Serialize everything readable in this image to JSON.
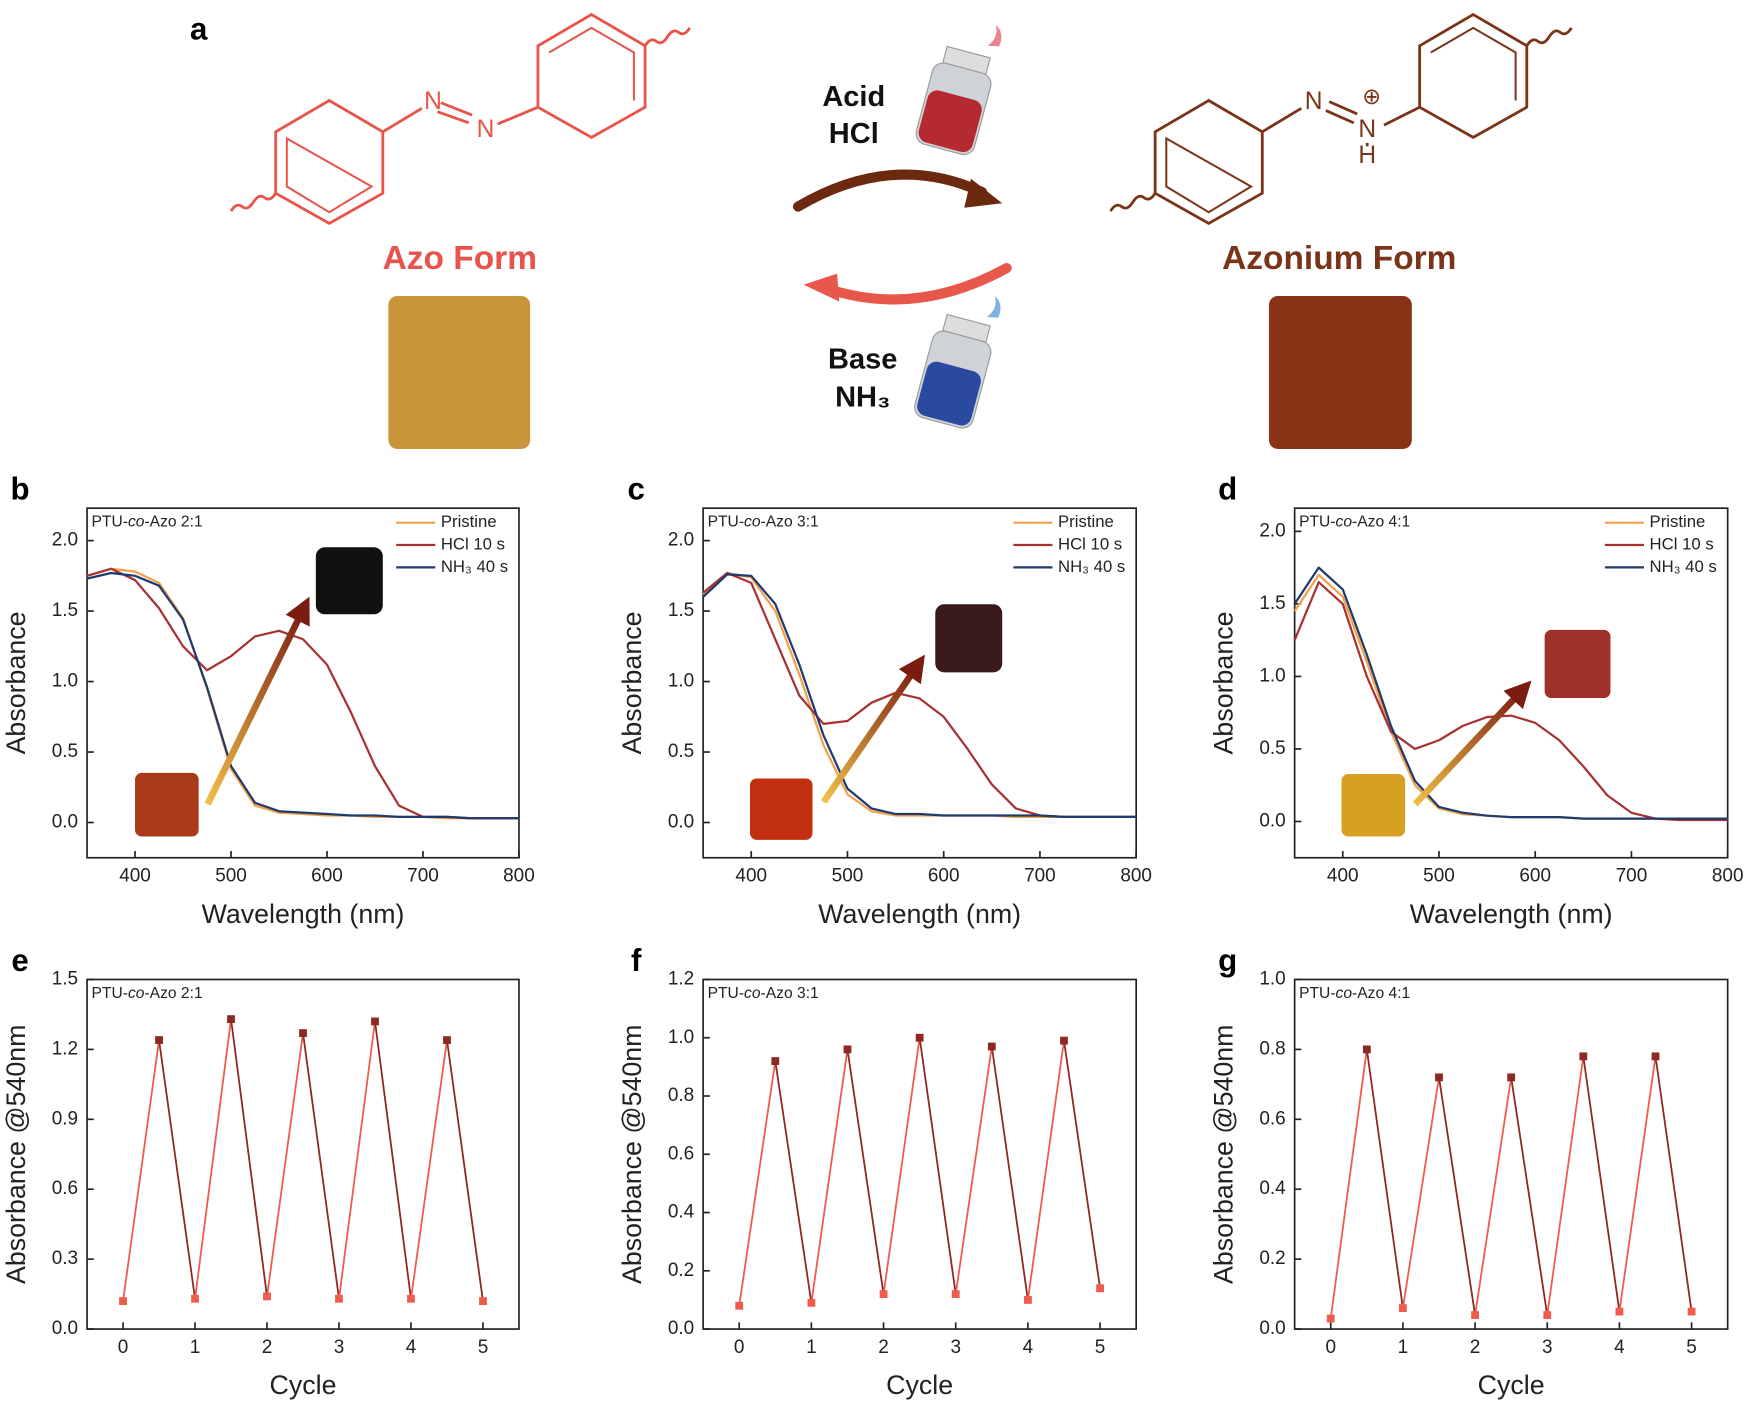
{
  "scheme": {
    "label": "a",
    "azo_form": "Azo Form",
    "azonium_form": "Azonium Form",
    "acid": "Acid",
    "acid_name": "HCl",
    "base": "Base",
    "base_name": "NH₃",
    "azo_atoms": [
      "N",
      "N"
    ],
    "azonium_atoms": [
      "N",
      "N",
      "H"
    ],
    "charge": "⊕"
  },
  "chart_data": [
    {
      "type": "line",
      "label": "b",
      "annotation": [
        "PTU-",
        "co",
        "-Azo 2:1"
      ],
      "x_label": "Wavelength (nm)",
      "y_label": "Absorbance",
      "legend": "upper right",
      "x": [
        350,
        375,
        400,
        425,
        450,
        475,
        500,
        525,
        550,
        575,
        600,
        625,
        650,
        675,
        700,
        725,
        750,
        775,
        800
      ],
      "series": [
        {
          "name": "Pristine",
          "color": "#f2a04a",
          "values": [
            1.75,
            1.8,
            1.78,
            1.7,
            1.45,
            0.95,
            0.38,
            0.12,
            0.07,
            0.06,
            0.05,
            0.05,
            0.04,
            0.04,
            0.04,
            0.03,
            0.03,
            0.03,
            0.03
          ]
        },
        {
          "name": "HCl 10 s",
          "color": "#a83232",
          "values": [
            1.75,
            1.8,
            1.72,
            1.52,
            1.25,
            1.08,
            1.18,
            1.32,
            1.36,
            1.3,
            1.12,
            0.78,
            0.4,
            0.12,
            0.04,
            0.04,
            0.03,
            0.03,
            0.03
          ]
        },
        {
          "name": "NH₃ 40 s",
          "color": "#1f3b6e",
          "values": [
            1.73,
            1.77,
            1.75,
            1.68,
            1.44,
            0.96,
            0.4,
            0.14,
            0.08,
            0.07,
            0.06,
            0.05,
            0.05,
            0.04,
            0.04,
            0.04,
            0.03,
            0.03,
            0.03
          ]
        }
      ],
      "xlim": [
        350,
        800
      ],
      "xticks": [
        400,
        500,
        600,
        700,
        800
      ],
      "ylim": [
        -0.25,
        2.23
      ],
      "yticks": [
        {
          "value": 0,
          "label": "0.0"
        },
        0.5,
        {
          "value": 1,
          "label": "1.0"
        },
        1.5,
        {
          "value": 2,
          "label": "2.0"
        }
      ]
    },
    {
      "type": "line",
      "label": "c",
      "annotation": [
        "PTU-",
        "co",
        "-Azo 3:1"
      ],
      "x_label": "Wavelength (nm)",
      "y_label": "Absorbance",
      "legend": "upper right",
      "x": [
        350,
        375,
        400,
        425,
        450,
        475,
        500,
        525,
        550,
        575,
        600,
        625,
        650,
        675,
        700,
        725,
        750,
        775,
        800
      ],
      "series": [
        {
          "name": "Pristine",
          "color": "#f2a04a",
          "values": [
            1.62,
            1.77,
            1.74,
            1.5,
            1.05,
            0.55,
            0.2,
            0.08,
            0.05,
            0.05,
            0.05,
            0.05,
            0.05,
            0.04,
            0.04,
            0.04,
            0.04,
            0.04,
            0.04
          ]
        },
        {
          "name": "HCl 10 s",
          "color": "#a83232",
          "values": [
            1.63,
            1.77,
            1.7,
            1.3,
            0.9,
            0.7,
            0.72,
            0.85,
            0.92,
            0.88,
            0.75,
            0.52,
            0.27,
            0.1,
            0.05,
            0.04,
            0.04,
            0.04,
            0.04
          ]
        },
        {
          "name": "NH₃ 40 s",
          "color": "#1f3b6e",
          "values": [
            1.6,
            1.76,
            1.75,
            1.55,
            1.12,
            0.62,
            0.24,
            0.1,
            0.06,
            0.06,
            0.05,
            0.05,
            0.05,
            0.05,
            0.05,
            0.04,
            0.04,
            0.04,
            0.04
          ]
        }
      ],
      "xlim": [
        350,
        800
      ],
      "xticks": [
        400,
        500,
        600,
        700,
        800
      ],
      "ylim": [
        -0.25,
        2.23
      ],
      "yticks": [
        {
          "value": 0,
          "label": "0.0"
        },
        0.5,
        {
          "value": 1,
          "label": "1.0"
        },
        1.5,
        {
          "value": 2,
          "label": "2.0"
        }
      ]
    },
    {
      "type": "line",
      "label": "d",
      "annotation": [
        "PTU-",
        "co",
        "-Azo 4:1"
      ],
      "x_label": "Wavelength (nm)",
      "y_label": "Absorbance",
      "legend": "upper right",
      "x": [
        350,
        375,
        400,
        425,
        450,
        475,
        500,
        525,
        550,
        575,
        600,
        625,
        650,
        675,
        700,
        725,
        750,
        775,
        800
      ],
      "series": [
        {
          "name": "Pristine",
          "color": "#f2a04a",
          "values": [
            1.45,
            1.7,
            1.55,
            1.1,
            0.62,
            0.25,
            0.09,
            0.05,
            0.04,
            0.03,
            0.03,
            0.03,
            0.02,
            0.02,
            0.02,
            0.02,
            0.02,
            0.02,
            0.02
          ]
        },
        {
          "name": "HCl 10 s",
          "color": "#a83232",
          "values": [
            1.25,
            1.65,
            1.5,
            1.0,
            0.62,
            0.5,
            0.56,
            0.66,
            0.72,
            0.73,
            0.68,
            0.56,
            0.38,
            0.18,
            0.06,
            0.02,
            0.01,
            0.01,
            0.01
          ]
        },
        {
          "name": "NH₃ 40 s",
          "color": "#1f3b6e",
          "values": [
            1.5,
            1.75,
            1.6,
            1.15,
            0.66,
            0.28,
            0.1,
            0.06,
            0.04,
            0.03,
            0.03,
            0.03,
            0.02,
            0.02,
            0.02,
            0.02,
            0.02,
            0.02,
            0.02
          ]
        }
      ],
      "xlim": [
        350,
        800
      ],
      "xticks": [
        400,
        500,
        600,
        700,
        800
      ],
      "ylim": [
        -0.25,
        2.16
      ],
      "yticks": [
        {
          "value": 0,
          "label": "0.0"
        },
        0.5,
        {
          "value": 1,
          "label": "1.0"
        },
        1.5,
        {
          "value": 2,
          "label": "2.0"
        }
      ]
    },
    {
      "type": "cycle",
      "label": "e",
      "annotation": [
        "PTU-",
        "co",
        "-Azo 2:1"
      ],
      "x_label": "Cycle",
      "y_label": "Absorbance @540nm",
      "colors": [
        "#ef5b4c",
        "#8c2a22"
      ],
      "x": [
        0,
        0.5,
        1,
        1.5,
        2,
        2.5,
        3,
        3.5,
        4,
        4.5,
        5
      ],
      "values": [
        0.12,
        1.24,
        0.13,
        1.33,
        0.14,
        1.27,
        0.13,
        1.32,
        0.13,
        1.24,
        0.12
      ],
      "xlim": [
        -0.5,
        5.5
      ],
      "xticks": [
        0,
        1,
        2,
        3,
        4,
        5
      ],
      "ylim": [
        0,
        1.5
      ],
      "yticks": [
        {
          "value": 0,
          "label": "0.0"
        },
        0.3,
        0.6,
        0.9,
        1.2,
        1.5
      ]
    },
    {
      "type": "cycle",
      "label": "f",
      "annotation": [
        "PTU-",
        "co",
        "-Azo 3:1"
      ],
      "x_label": "Cycle",
      "y_label": "Absorbance @540nm",
      "colors": [
        "#ef5b4c",
        "#8c2a22"
      ],
      "x": [
        0,
        0.5,
        1,
        1.5,
        2,
        2.5,
        3,
        3.5,
        4,
        4.5,
        5
      ],
      "values": [
        0.08,
        0.92,
        0.09,
        0.96,
        0.12,
        1.0,
        0.12,
        0.97,
        0.1,
        0.99,
        0.14
      ],
      "xlim": [
        -0.5,
        5.5
      ],
      "xticks": [
        0,
        1,
        2,
        3,
        4,
        5
      ],
      "ylim": [
        0,
        1.2
      ],
      "yticks": [
        {
          "value": 0,
          "label": "0.0"
        },
        0.2,
        0.4,
        0.6,
        0.8,
        {
          "value": 1,
          "label": "1.0"
        },
        1.2
      ]
    },
    {
      "type": "cycle",
      "label": "g",
      "annotation": [
        "PTU-",
        "co",
        "-Azo 4:1"
      ],
      "x_label": "Cycle",
      "y_label": "Absorbance @540nm",
      "colors": [
        "#ef5b4c",
        "#8c2a22"
      ],
      "x": [
        0,
        0.5,
        1,
        1.5,
        2,
        2.5,
        3,
        3.5,
        4,
        4.5,
        5
      ],
      "values": [
        0.03,
        0.8,
        0.06,
        0.72,
        0.04,
        0.72,
        0.04,
        0.78,
        0.05,
        0.78,
        0.05
      ],
      "xlim": [
        -0.5,
        5.5
      ],
      "xticks": [
        0,
        1,
        2,
        3,
        4,
        5
      ],
      "ylim": [
        0,
        1.0
      ],
      "yticks": [
        {
          "value": 0,
          "label": "0.0"
        },
        0.2,
        0.4,
        0.6,
        0.8,
        {
          "value": 1,
          "label": "1.0"
        }
      ]
    }
  ]
}
